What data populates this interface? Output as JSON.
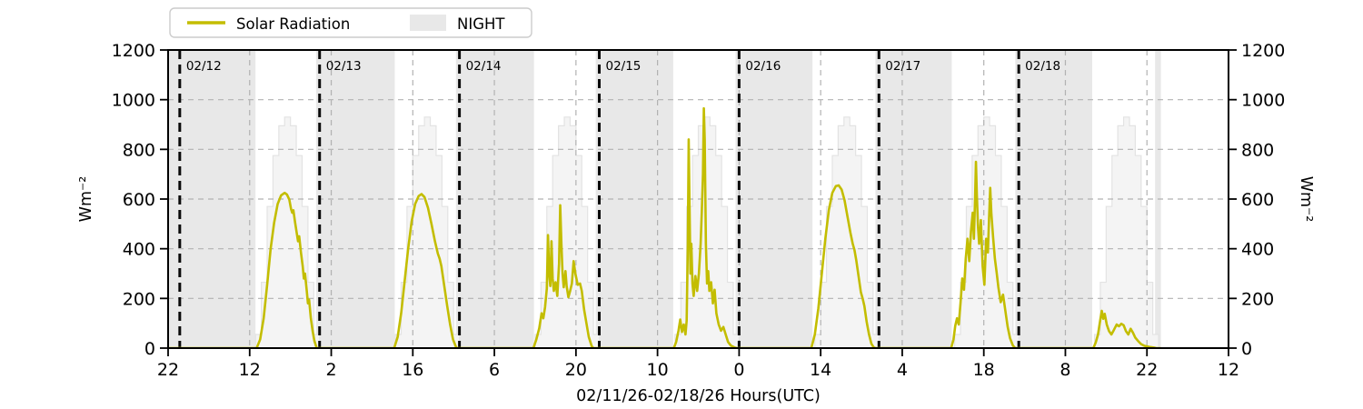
{
  "chart_data": {
    "type": "line",
    "title": "",
    "xlabel": "02/11/26-02/18/26  Hours(UTC)",
    "ylabel_left": "Wm⁻²",
    "ylabel_right": "Wm⁻²",
    "ylim": [
      0,
      1200
    ],
    "y_ticks": [
      0,
      200,
      400,
      600,
      800,
      1000,
      1200
    ],
    "x_axis_start": "02/11 22:00 UTC",
    "x_total_hours": 182,
    "x_tick_interval_hours": 14,
    "x_tick_labels": [
      "22",
      "12",
      "2",
      "16",
      "6",
      "20",
      "10",
      "0",
      "14",
      "4",
      "18",
      "8",
      "22",
      "12"
    ],
    "grid": true,
    "legend": {
      "position": "top-left",
      "entries": [
        {
          "label": "Solar Radiation",
          "type": "line",
          "color": "#c3bd00"
        },
        {
          "label": "NIGHT",
          "type": "patch",
          "color": "#e8e8e8"
        }
      ]
    },
    "midnight_lines": [
      {
        "hour": 2,
        "label": "02/12"
      },
      {
        "hour": 26,
        "label": "02/13"
      },
      {
        "hour": 50,
        "label": "02/14"
      },
      {
        "hour": 74,
        "label": "02/15"
      },
      {
        "hour": 98,
        "label": "02/16"
      },
      {
        "hour": 122,
        "label": "02/17"
      },
      {
        "hour": 146,
        "label": "02/18"
      }
    ],
    "night_bands_hours": [
      [
        0,
        15.0
      ],
      [
        25.4,
        38.9
      ],
      [
        49.4,
        62.8
      ],
      [
        73.4,
        86.7
      ],
      [
        97.4,
        110.6
      ],
      [
        121.4,
        134.5
      ],
      [
        145.4,
        158.6
      ],
      [
        169.4,
        170.4
      ]
    ],
    "clear_sky_steps": {
      "day_midnight_hours": [
        2,
        26,
        50,
        74,
        98,
        122,
        146
      ],
      "relative_hour_values": [
        [
          13,
          55
        ],
        [
          14,
          265
        ],
        [
          15,
          570
        ],
        [
          16,
          775
        ],
        [
          17,
          895
        ],
        [
          18,
          930
        ],
        [
          19,
          895
        ],
        [
          20,
          775
        ],
        [
          21,
          570
        ],
        [
          22,
          265
        ],
        [
          23,
          55
        ],
        [
          24,
          0
        ]
      ]
    },
    "series": [
      {
        "name": "Solar Radiation",
        "color": "#c3bd00",
        "points_hour_value": [
          [
            0,
            0
          ],
          [
            15.2,
            0
          ],
          [
            15.8,
            35
          ],
          [
            16.4,
            120
          ],
          [
            17.0,
            255
          ],
          [
            17.6,
            400
          ],
          [
            18.2,
            505
          ],
          [
            18.8,
            580
          ],
          [
            19.4,
            615
          ],
          [
            20.0,
            625
          ],
          [
            20.4,
            618
          ],
          [
            20.8,
            598
          ],
          [
            21.1,
            560
          ],
          [
            21.3,
            545
          ],
          [
            21.5,
            555
          ],
          [
            21.8,
            505
          ],
          [
            22.1,
            460
          ],
          [
            22.3,
            430
          ],
          [
            22.5,
            450
          ],
          [
            22.8,
            385
          ],
          [
            23.1,
            330
          ],
          [
            23.3,
            280
          ],
          [
            23.5,
            300
          ],
          [
            23.8,
            230
          ],
          [
            24.0,
            180
          ],
          [
            24.2,
            195
          ],
          [
            24.5,
            120
          ],
          [
            24.8,
            70
          ],
          [
            25.1,
            30
          ],
          [
            25.5,
            0
          ],
          [
            38.8,
            0
          ],
          [
            39.4,
            45
          ],
          [
            40.0,
            140
          ],
          [
            40.6,
            270
          ],
          [
            41.2,
            400
          ],
          [
            41.8,
            510
          ],
          [
            42.4,
            580
          ],
          [
            43.0,
            612
          ],
          [
            43.5,
            620
          ],
          [
            44.0,
            608
          ],
          [
            44.6,
            565
          ],
          [
            45.2,
            500
          ],
          [
            45.8,
            430
          ],
          [
            46.3,
            380
          ],
          [
            46.6,
            360
          ],
          [
            46.9,
            330
          ],
          [
            47.4,
            250
          ],
          [
            47.9,
            170
          ],
          [
            48.4,
            95
          ],
          [
            48.9,
            35
          ],
          [
            49.4,
            5
          ],
          [
            49.6,
            0
          ],
          [
            62.7,
            0
          ],
          [
            63.2,
            35
          ],
          [
            63.7,
            80
          ],
          [
            64.1,
            140
          ],
          [
            64.4,
            120
          ],
          [
            64.7,
            165
          ],
          [
            65.0,
            240
          ],
          [
            65.2,
            455
          ],
          [
            65.4,
            300
          ],
          [
            65.6,
            250
          ],
          [
            65.8,
            430
          ],
          [
            66.0,
            280
          ],
          [
            66.2,
            230
          ],
          [
            66.5,
            265
          ],
          [
            66.8,
            210
          ],
          [
            67.1,
            340
          ],
          [
            67.3,
            575
          ],
          [
            67.5,
            420
          ],
          [
            67.7,
            300
          ],
          [
            67.9,
            245
          ],
          [
            68.2,
            310
          ],
          [
            68.4,
            250
          ],
          [
            68.7,
            205
          ],
          [
            69.0,
            230
          ],
          [
            69.3,
            260
          ],
          [
            69.6,
            350
          ],
          [
            69.9,
            300
          ],
          [
            70.3,
            255
          ],
          [
            70.7,
            260
          ],
          [
            71.0,
            230
          ],
          [
            71.4,
            155
          ],
          [
            71.8,
            100
          ],
          [
            72.2,
            45
          ],
          [
            72.7,
            8
          ],
          [
            73.0,
            0
          ],
          [
            86.8,
            0
          ],
          [
            87.2,
            25
          ],
          [
            87.6,
            70
          ],
          [
            87.9,
            115
          ],
          [
            88.2,
            65
          ],
          [
            88.5,
            95
          ],
          [
            88.8,
            55
          ],
          [
            89.0,
            110
          ],
          [
            89.2,
            420
          ],
          [
            89.35,
            840
          ],
          [
            89.5,
            560
          ],
          [
            89.65,
            300
          ],
          [
            89.8,
            420
          ],
          [
            90.0,
            260
          ],
          [
            90.2,
            210
          ],
          [
            90.5,
            290
          ],
          [
            90.8,
            230
          ],
          [
            91.1,
            300
          ],
          [
            91.4,
            420
          ],
          [
            91.6,
            550
          ],
          [
            91.8,
            700
          ],
          [
            91.95,
            965
          ],
          [
            92.1,
            840
          ],
          [
            92.3,
            420
          ],
          [
            92.5,
            260
          ],
          [
            92.7,
            310
          ],
          [
            92.9,
            230
          ],
          [
            93.2,
            265
          ],
          [
            93.5,
            180
          ],
          [
            93.8,
            235
          ],
          [
            94.1,
            140
          ],
          [
            94.5,
            95
          ],
          [
            94.9,
            70
          ],
          [
            95.3,
            85
          ],
          [
            95.7,
            55
          ],
          [
            96.1,
            25
          ],
          [
            96.6,
            10
          ],
          [
            97.2,
            3
          ],
          [
            97.6,
            0
          ],
          [
            110.4,
            0
          ],
          [
            111.0,
            55
          ],
          [
            111.6,
            160
          ],
          [
            112.2,
            300
          ],
          [
            112.8,
            440
          ],
          [
            113.4,
            555
          ],
          [
            114.0,
            625
          ],
          [
            114.6,
            652
          ],
          [
            115.1,
            655
          ],
          [
            115.6,
            638
          ],
          [
            116.1,
            595
          ],
          [
            116.6,
            530
          ],
          [
            117.1,
            465
          ],
          [
            117.5,
            420
          ],
          [
            117.8,
            395
          ],
          [
            118.1,
            355
          ],
          [
            118.5,
            290
          ],
          [
            118.9,
            225
          ],
          [
            119.2,
            200
          ],
          [
            119.5,
            170
          ],
          [
            119.9,
            105
          ],
          [
            120.3,
            55
          ],
          [
            120.7,
            18
          ],
          [
            121.1,
            3
          ],
          [
            121.4,
            0
          ],
          [
            134.4,
            0
          ],
          [
            134.8,
            35
          ],
          [
            135.1,
            90
          ],
          [
            135.4,
            120
          ],
          [
            135.7,
            95
          ],
          [
            136.0,
            180
          ],
          [
            136.3,
            280
          ],
          [
            136.6,
            235
          ],
          [
            136.9,
            360
          ],
          [
            137.2,
            440
          ],
          [
            137.5,
            350
          ],
          [
            137.8,
            470
          ],
          [
            138.1,
            545
          ],
          [
            138.3,
            440
          ],
          [
            138.5,
            600
          ],
          [
            138.65,
            750
          ],
          [
            138.8,
            620
          ],
          [
            139.0,
            490
          ],
          [
            139.2,
            420
          ],
          [
            139.5,
            515
          ],
          [
            139.8,
            330
          ],
          [
            140.1,
            255
          ],
          [
            140.4,
            440
          ],
          [
            140.7,
            385
          ],
          [
            140.9,
            520
          ],
          [
            141.1,
            645
          ],
          [
            141.3,
            540
          ],
          [
            141.6,
            445
          ],
          [
            141.9,
            360
          ],
          [
            142.2,
            305
          ],
          [
            142.5,
            245
          ],
          [
            142.9,
            185
          ],
          [
            143.3,
            215
          ],
          [
            143.7,
            150
          ],
          [
            144.1,
            85
          ],
          [
            144.5,
            40
          ],
          [
            145.0,
            10
          ],
          [
            145.4,
            0
          ],
          [
            158.8,
            0
          ],
          [
            159.2,
            22
          ],
          [
            159.6,
            55
          ],
          [
            160.0,
            115
          ],
          [
            160.25,
            150
          ],
          [
            160.5,
            118
          ],
          [
            160.75,
            138
          ],
          [
            161.1,
            95
          ],
          [
            161.5,
            68
          ],
          [
            161.9,
            55
          ],
          [
            162.3,
            72
          ],
          [
            162.8,
            95
          ],
          [
            163.2,
            88
          ],
          [
            163.6,
            98
          ],
          [
            164.0,
            92
          ],
          [
            164.4,
            68
          ],
          [
            164.8,
            55
          ],
          [
            165.2,
            78
          ],
          [
            165.6,
            62
          ],
          [
            166.0,
            42
          ],
          [
            166.5,
            28
          ],
          [
            167.0,
            16
          ],
          [
            167.6,
            9
          ],
          [
            168.4,
            5
          ],
          [
            169.2,
            2
          ],
          [
            169.6,
            0
          ],
          [
            170.3,
            0
          ]
        ]
      }
    ]
  },
  "colors": {
    "line": "#c3bd00",
    "night": "#e8e8e8",
    "clear_sky_fill": "#f4f4f4",
    "clear_sky_edge": "#e3e3e3",
    "grid": "#b2b2b2",
    "midnight_line": "#0a0a0a",
    "date_label": "#3d3d3d",
    "spine": "#000000",
    "legend_border": "#cccccc",
    "legend_bg": "#ffffff"
  }
}
